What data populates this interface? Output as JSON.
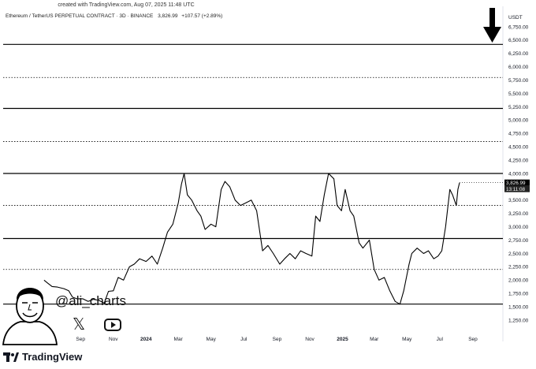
{
  "header": {
    "created_text": "created with TradingView.com, Aug 07, 2025 11:48 UTC",
    "symbol_text": "Ethereum / TetherUS PERPETUAL CONTRACT · 3D · BINANCE",
    "last_price": "3,826.99",
    "change": "+107.57 (+2.89%)"
  },
  "price_scale": {
    "currency": "USDT",
    "last_price_label": "3,826.99",
    "countdown_label": "13:11:08"
  },
  "author": {
    "handle": "@ali_charts"
  },
  "footer": {
    "brand": "TradingView"
  },
  "icons": [
    "down-arrow-icon",
    "x-icon",
    "youtube-icon",
    "tradingview-logo-icon",
    "avatar-illustration"
  ],
  "colors": {
    "line": "#000000",
    "background": "#ffffff",
    "label_bg": "#000000"
  },
  "chart_data": {
    "type": "line",
    "title": "",
    "xlabel": "",
    "ylabel": "",
    "ylim": [
      1050,
      6850
    ],
    "yticks": [
      1250,
      1500,
      1750,
      2000,
      2250,
      2500,
      2750,
      3000,
      3250,
      3500,
      3750,
      4000,
      4250,
      4500,
      4750,
      5000,
      5250,
      5500,
      5750,
      6000,
      6250,
      6500,
      6750
    ],
    "ytick_labels": [
      "1,250.00",
      "1,500.00",
      "1,750.00",
      "2,000.00",
      "2,250.00",
      "2,500.00",
      "2,750.00",
      "3,000.00",
      "3,250.00",
      "3,500.00",
      "3,750.00",
      "4,000.00",
      "4,250.00",
      "4,500.00",
      "4,750.00",
      "5,000.00",
      "5,250.00",
      "5,500.00",
      "5,750.00",
      "6,000.00",
      "6,250.00",
      "6,500.00",
      "6,750.00"
    ],
    "xlim": [
      "2023-07-01",
      "2025-10-01"
    ],
    "xticks": [
      {
        "date": "2023-07-01",
        "label": "Jul"
      },
      {
        "date": "2023-09-01",
        "label": "Sep"
      },
      {
        "date": "2023-11-01",
        "label": "Nov"
      },
      {
        "date": "2024-01-01",
        "label": "2024"
      },
      {
        "date": "2024-03-01",
        "label": "Mar"
      },
      {
        "date": "2024-05-01",
        "label": "May"
      },
      {
        "date": "2024-07-01",
        "label": "Jul"
      },
      {
        "date": "2024-09-01",
        "label": "Sep"
      },
      {
        "date": "2024-11-01",
        "label": "Nov"
      },
      {
        "date": "2025-01-01",
        "label": "2025"
      },
      {
        "date": "2025-03-01",
        "label": "Mar"
      },
      {
        "date": "2025-05-01",
        "label": "May"
      },
      {
        "date": "2025-07-01",
        "label": "Jul"
      },
      {
        "date": "2025-09-01",
        "label": "Sep"
      }
    ],
    "horizontal_levels": [
      {
        "value": 1550,
        "style": "solid"
      },
      {
        "value": 2200,
        "style": "dotted"
      },
      {
        "value": 2780,
        "style": "solid"
      },
      {
        "value": 3400,
        "style": "dotted"
      },
      {
        "value": 4000,
        "style": "solid"
      },
      {
        "value": 4600,
        "style": "dotted"
      },
      {
        "value": 5220,
        "style": "solid"
      },
      {
        "value": 5800,
        "style": "dotted"
      },
      {
        "value": 6420,
        "style": "solid"
      }
    ],
    "series": [
      {
        "x": [
          "2023-06-25",
          "2023-07-01",
          "2023-07-10",
          "2023-07-20",
          "2023-08-01",
          "2023-08-10",
          "2023-08-17",
          "2023-08-25",
          "2023-09-05",
          "2023-09-15",
          "2023-09-25",
          "2023-10-05",
          "2023-10-15",
          "2023-10-23",
          "2023-11-01",
          "2023-11-10",
          "2023-11-20",
          "2023-12-01",
          "2023-12-10",
          "2023-12-20",
          "2024-01-01",
          "2024-01-12",
          "2024-01-22",
          "2024-02-01",
          "2024-02-10",
          "2024-02-20",
          "2024-03-01",
          "2024-03-07",
          "2024-03-12",
          "2024-03-18",
          "2024-03-26",
          "2024-04-05",
          "2024-04-12",
          "2024-04-20",
          "2024-05-01",
          "2024-05-10",
          "2024-05-20",
          "2024-05-27",
          "2024-06-05",
          "2024-06-15",
          "2024-06-25",
          "2024-07-05",
          "2024-07-15",
          "2024-07-25",
          "2024-08-05",
          "2024-08-15",
          "2024-08-25",
          "2024-09-06",
          "2024-09-15",
          "2024-09-25",
          "2024-10-05",
          "2024-10-15",
          "2024-10-25",
          "2024-11-05",
          "2024-11-12",
          "2024-11-20",
          "2024-11-28",
          "2024-12-06",
          "2024-12-16",
          "2024-12-22",
          "2024-12-30",
          "2025-01-06",
          "2025-01-15",
          "2025-01-22",
          "2025-02-01",
          "2025-02-08",
          "2025-02-20",
          "2025-03-01",
          "2025-03-10",
          "2025-03-20",
          "2025-03-30",
          "2025-04-09",
          "2025-04-18",
          "2025-04-25",
          "2025-05-05",
          "2025-05-10",
          "2025-05-20",
          "2025-06-01",
          "2025-06-10",
          "2025-06-20",
          "2025-06-28",
          "2025-07-05",
          "2025-07-12",
          "2025-07-20",
          "2025-07-25",
          "2025-08-01",
          "2025-08-04",
          "2025-08-07"
        ],
        "values": [
          2000,
          1950,
          1880,
          1870,
          1840,
          1800,
          1680,
          1650,
          1650,
          1600,
          1640,
          1620,
          1570,
          1790,
          1800,
          2050,
          2000,
          2250,
          2300,
          2400,
          2350,
          2450,
          2300,
          2600,
          2900,
          3050,
          3450,
          3800,
          4000,
          3600,
          3500,
          3300,
          3200,
          2950,
          3050,
          3000,
          3700,
          3850,
          3750,
          3500,
          3400,
          3450,
          3500,
          3300,
          2550,
          2650,
          2500,
          2300,
          2400,
          2500,
          2400,
          2550,
          2500,
          2450,
          3200,
          3100,
          3600,
          4000,
          3900,
          3400,
          3300,
          3700,
          3300,
          3200,
          2700,
          2600,
          2750,
          2200,
          2000,
          2050,
          1800,
          1600,
          1550,
          1800,
          2300,
          2500,
          2600,
          2500,
          2550,
          2400,
          2450,
          2550,
          3000,
          3700,
          3600,
          3400,
          3700,
          3826.99
        ]
      }
    ],
    "last_value": 3826.99
  }
}
